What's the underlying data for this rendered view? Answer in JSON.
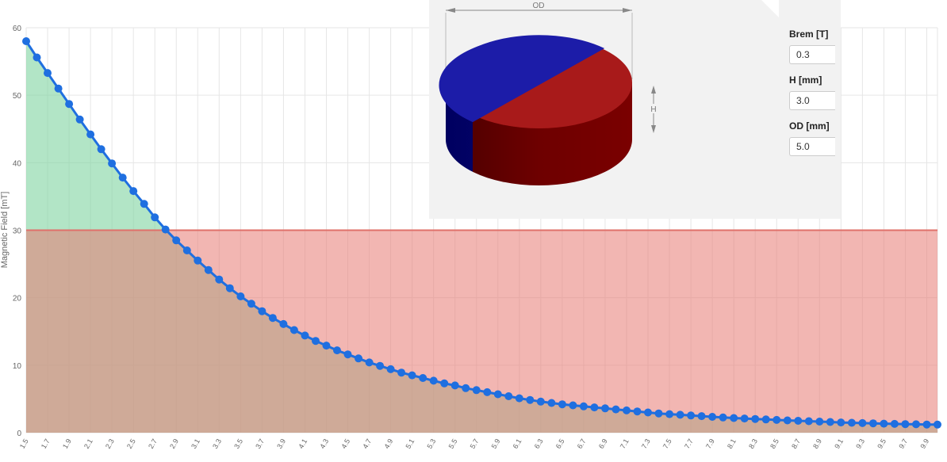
{
  "chart_data": {
    "type": "line",
    "ylabel": "Magnetic Field [mT]",
    "xlabel": "",
    "ylim": [
      0,
      60
    ],
    "yticks": [
      0,
      10,
      20,
      30,
      40,
      50,
      60
    ],
    "x_tick_labels": [
      "1.5",
      "1.7",
      "1.9",
      "2.1",
      "2.3",
      "2.5",
      "2.7",
      "2.9",
      "3.1",
      "3.3",
      "3.5",
      "3.7",
      "3.9",
      "4.1",
      "4.3",
      "4.5",
      "4.7",
      "4.9",
      "5.1",
      "5.3",
      "5.5",
      "5.7",
      "5.9",
      "6.1",
      "6.3",
      "6.5",
      "6.7",
      "6.9",
      "7.1",
      "7.3",
      "7.5",
      "7.7",
      "7.9",
      "8.1",
      "8.3",
      "8.5",
      "8.7",
      "8.9",
      "9.1",
      "9.3",
      "9.5",
      "9.7",
      "9.9"
    ],
    "threshold": 30,
    "x": [
      1.5,
      1.6,
      1.7,
      1.8,
      1.9,
      2.0,
      2.1,
      2.2,
      2.3,
      2.4,
      2.5,
      2.6,
      2.7,
      2.8,
      2.9,
      3.0,
      3.1,
      3.2,
      3.3,
      3.4,
      3.5,
      3.6,
      3.7,
      3.8,
      3.9,
      4.0,
      4.1,
      4.2,
      4.3,
      4.4,
      4.5,
      4.6,
      4.7,
      4.8,
      4.9,
      5.0,
      5.1,
      5.2,
      5.3,
      5.4,
      5.5,
      5.6,
      5.7,
      5.8,
      5.9,
      6.0,
      6.1,
      6.2,
      6.3,
      6.4,
      6.5,
      6.6,
      6.7,
      6.8,
      6.9,
      7.0,
      7.1,
      7.2,
      7.3,
      7.4,
      7.5,
      7.6,
      7.7,
      7.8,
      7.9,
      8.0,
      8.1,
      8.2,
      8.3,
      8.4,
      8.5,
      8.6,
      8.7,
      8.8,
      8.9,
      9.0,
      9.1,
      9.2,
      9.3,
      9.4,
      9.5,
      9.6,
      9.7,
      9.8,
      9.9,
      10.0
    ],
    "series": [
      {
        "name": "",
        "values": [
          58.0,
          55.6,
          53.3,
          51.0,
          48.7,
          46.4,
          44.2,
          42.0,
          39.9,
          37.8,
          35.8,
          33.9,
          31.9,
          30.1,
          28.5,
          27.0,
          25.5,
          24.1,
          22.7,
          21.4,
          20.2,
          19.1,
          18.0,
          17.0,
          16.1,
          15.2,
          14.4,
          13.6,
          12.9,
          12.2,
          11.6,
          11.0,
          10.4,
          9.9,
          9.4,
          8.9,
          8.5,
          8.1,
          7.7,
          7.3,
          7.0,
          6.6,
          6.3,
          6.0,
          5.7,
          5.4,
          5.1,
          4.85,
          4.6,
          4.4,
          4.2,
          4.05,
          3.9,
          3.75,
          3.6,
          3.45,
          3.3,
          3.15,
          3.0,
          2.85,
          2.75,
          2.65,
          2.55,
          2.45,
          2.35,
          2.25,
          2.17,
          2.1,
          2.03,
          1.96,
          1.89,
          1.82,
          1.76,
          1.7,
          1.64,
          1.58,
          1.52,
          1.47,
          1.42,
          1.38,
          1.34,
          1.3,
          1.27,
          1.24,
          1.21,
          1.2
        ]
      }
    ],
    "colors": {
      "line": "#1f6fe0",
      "area_fill": "#7fd4a0",
      "threshold_fill": "#e87a72",
      "grid": "#e6e6e6"
    }
  },
  "magnet": {
    "od_label": "OD",
    "h_label": "H",
    "colors": {
      "north": "#1c1ca8",
      "south": "#a81a1a"
    }
  },
  "params": [
    {
      "label": "Brem [T]",
      "value": "0.3"
    },
    {
      "label": "H [mm]",
      "value": "3.0"
    },
    {
      "label": "OD [mm]",
      "value": "5.0"
    }
  ]
}
